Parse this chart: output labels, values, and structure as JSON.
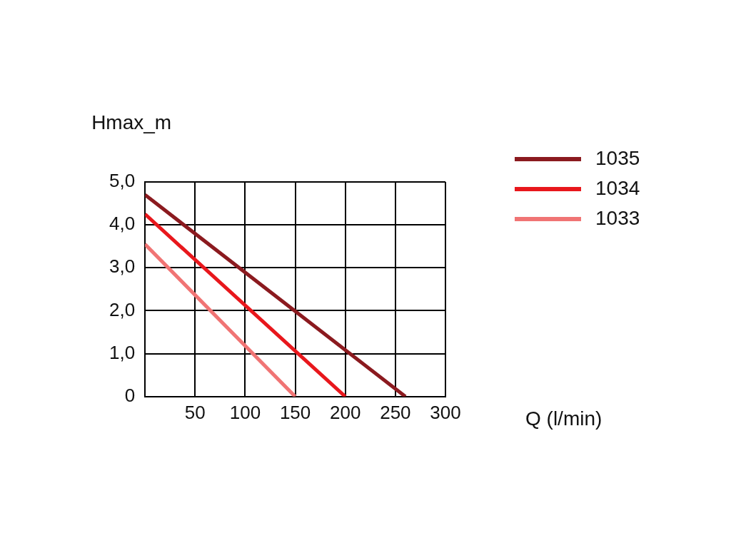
{
  "chart_data": {
    "type": "line",
    "ylabel": "Hmax_m",
    "xlabel": "Q (l/min)",
    "xlim": [
      0,
      300
    ],
    "xticks": [
      {
        "value": 0,
        "label": null
      },
      50,
      100,
      150,
      200,
      250,
      300
    ],
    "ylim": [
      0,
      5
    ],
    "yticks": [
      {
        "value": 0,
        "label": "0"
      },
      {
        "value": 1,
        "label": "1,0"
      },
      {
        "value": 2,
        "label": "2,0"
      },
      {
        "value": 3,
        "label": "3,0"
      },
      {
        "value": 4,
        "label": "4,0"
      },
      {
        "value": 5,
        "label": "5,0"
      }
    ],
    "grid": true,
    "legend": "right",
    "marker": "none",
    "line_style": "solid",
    "series": [
      {
        "name": "1035",
        "color": "#8b1a1f",
        "x": [
          0,
          260
        ],
        "values": [
          4.7,
          0
        ]
      },
      {
        "name": "1034",
        "color": "#e8171c",
        "x": [
          0,
          200
        ],
        "values": [
          4.25,
          0
        ]
      },
      {
        "name": "1033",
        "color": "#f07474",
        "x": [
          0,
          150
        ],
        "values": [
          3.55,
          0
        ]
      }
    ]
  }
}
